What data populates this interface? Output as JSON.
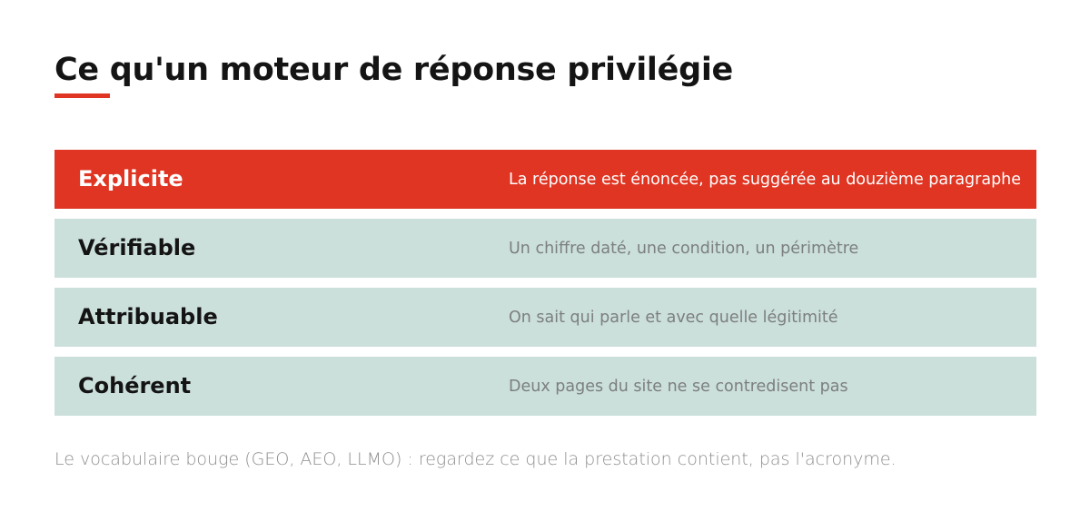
{
  "title": "Ce qu'un moteur de réponse privilégie",
  "accent_color": "#e03522",
  "row_color": "#cbdfdb",
  "rows": [
    {
      "label": "Explicite",
      "description": "La réponse est énoncée, pas suggérée au douzième paragraphe",
      "highlighted": true
    },
    {
      "label": "Vérifiable",
      "description": "Un chiffre daté, une condition, un périmètre",
      "highlighted": false
    },
    {
      "label": "Attribuable",
      "description": "On sait qui parle et avec quelle légitimité",
      "highlighted": false
    },
    {
      "label": "Cohérent",
      "description": "Deux pages du site ne se contredisent pas",
      "highlighted": false
    }
  ],
  "footnote": "Le vocabulaire bouge (GEO, AEO, LLMO) : regardez ce que la prestation contient, pas l'acronyme."
}
